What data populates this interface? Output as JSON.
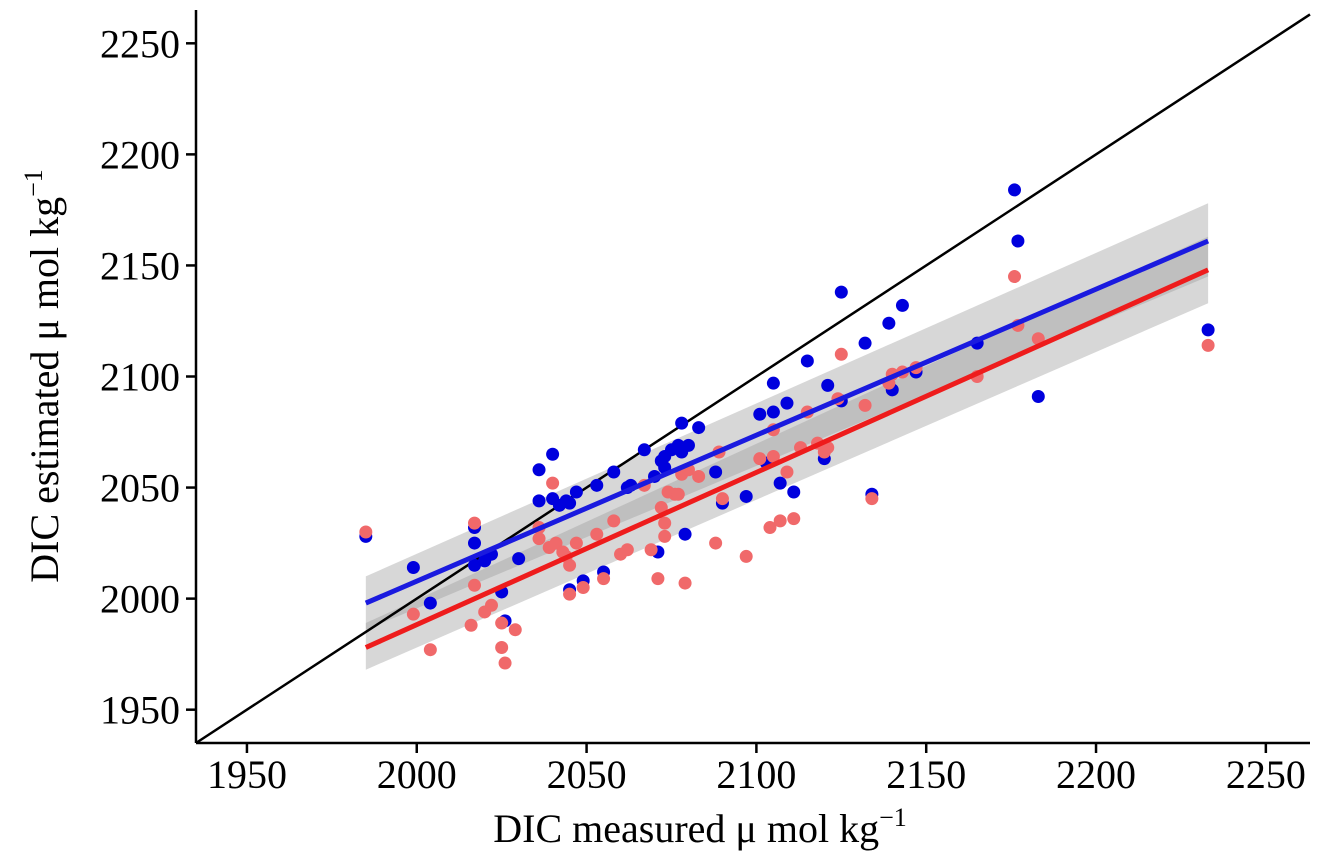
{
  "chart_data": {
    "type": "scatter",
    "title": "",
    "xlabel": "DIC measured  μ mol kg",
    "xlabel_sup": "−1",
    "ylabel": "DIC estimated  μ mol kg",
    "ylabel_sup": "−1",
    "xlim": [
      1935,
      2263
    ],
    "ylim": [
      1935,
      2265
    ],
    "xticks": [
      1950,
      2000,
      2050,
      2100,
      2150,
      2200,
      2250
    ],
    "yticks": [
      1950,
      2000,
      2050,
      2100,
      2150,
      2200,
      2250
    ],
    "grid": false,
    "legend": "none",
    "reference_line": {
      "type": "identity",
      "color": "#000000"
    },
    "series": [
      {
        "color": "#0000dd",
        "fit": {
          "x": [
            1985,
            2233
          ],
          "y": [
            1998,
            2161
          ],
          "ci_x": [
            1985,
            2233
          ],
          "ci_low": [
            1986,
            2145
          ],
          "ci_high": [
            2010,
            2178
          ]
        },
        "points": [
          [
            1985,
            2028
          ],
          [
            1999,
            2014
          ],
          [
            2004,
            1998
          ],
          [
            2017,
            2032
          ],
          [
            2017,
            2025
          ],
          [
            2017,
            2015
          ],
          [
            2020,
            2017
          ],
          [
            2022,
            2020
          ],
          [
            2025,
            2003
          ],
          [
            2026,
            1990
          ],
          [
            2030,
            2018
          ],
          [
            2036,
            2058
          ],
          [
            2036,
            2044
          ],
          [
            2040,
            2065
          ],
          [
            2040,
            2045
          ],
          [
            2042,
            2042
          ],
          [
            2044,
            2044
          ],
          [
            2045,
            2043
          ],
          [
            2045,
            2004
          ],
          [
            2047,
            2048
          ],
          [
            2049,
            2008
          ],
          [
            2053,
            2051
          ],
          [
            2055,
            2012
          ],
          [
            2058,
            2057
          ],
          [
            2062,
            2050
          ],
          [
            2063,
            2051
          ],
          [
            2067,
            2067
          ],
          [
            2070,
            2055
          ],
          [
            2071,
            2021
          ],
          [
            2072,
            2062
          ],
          [
            2073,
            2059
          ],
          [
            2073,
            2064
          ],
          [
            2075,
            2067
          ],
          [
            2077,
            2069
          ],
          [
            2078,
            2079
          ],
          [
            2078,
            2066
          ],
          [
            2079,
            2029
          ],
          [
            2080,
            2069
          ],
          [
            2083,
            2077
          ],
          [
            2088,
            2057
          ],
          [
            2090,
            2043
          ],
          [
            2097,
            2046
          ],
          [
            2101,
            2083
          ],
          [
            2103,
            2061
          ],
          [
            2105,
            2097
          ],
          [
            2105,
            2084
          ],
          [
            2107,
            2052
          ],
          [
            2109,
            2088
          ],
          [
            2111,
            2048
          ],
          [
            2115,
            2107
          ],
          [
            2120,
            2063
          ],
          [
            2121,
            2096
          ],
          [
            2125,
            2089
          ],
          [
            2125,
            2138
          ],
          [
            2132,
            2115
          ],
          [
            2134,
            2047
          ],
          [
            2139,
            2124
          ],
          [
            2140,
            2094
          ],
          [
            2143,
            2132
          ],
          [
            2147,
            2102
          ],
          [
            2165,
            2115
          ],
          [
            2176,
            2184
          ],
          [
            2177,
            2161
          ],
          [
            2183,
            2091
          ],
          [
            2233,
            2121
          ]
        ]
      },
      {
        "color": "#f0696a",
        "fit": {
          "x": [
            1985,
            2233
          ],
          "y": [
            1978,
            2148
          ],
          "ci_x": [
            1985,
            2233
          ],
          "ci_low": [
            1968,
            2133
          ],
          "ci_high": [
            1989,
            2163
          ]
        },
        "points": [
          [
            1985,
            2030
          ],
          [
            1999,
            1993
          ],
          [
            2004,
            1977
          ],
          [
            2016,
            1988
          ],
          [
            2017,
            2034
          ],
          [
            2017,
            2006
          ],
          [
            2020,
            1994
          ],
          [
            2022,
            1997
          ],
          [
            2025,
            1989
          ],
          [
            2025,
            1978
          ],
          [
            2026,
            1971
          ],
          [
            2029,
            1986
          ],
          [
            2036,
            2032
          ],
          [
            2036,
            2027
          ],
          [
            2039,
            2023
          ],
          [
            2040,
            2052
          ],
          [
            2041,
            2025
          ],
          [
            2043,
            2021
          ],
          [
            2044,
            2019
          ],
          [
            2045,
            2015
          ],
          [
            2045,
            2002
          ],
          [
            2047,
            2025
          ],
          [
            2049,
            2005
          ],
          [
            2053,
            2029
          ],
          [
            2055,
            2009
          ],
          [
            2058,
            2035
          ],
          [
            2060,
            2020
          ],
          [
            2062,
            2022
          ],
          [
            2067,
            2051
          ],
          [
            2069,
            2022
          ],
          [
            2071,
            2009
          ],
          [
            2072,
            2041
          ],
          [
            2073,
            2028
          ],
          [
            2073,
            2034
          ],
          [
            2074,
            2048
          ],
          [
            2076,
            2047
          ],
          [
            2077,
            2047
          ],
          [
            2078,
            2056
          ],
          [
            2079,
            2007
          ],
          [
            2080,
            2058
          ],
          [
            2083,
            2055
          ],
          [
            2088,
            2025
          ],
          [
            2089,
            2066
          ],
          [
            2090,
            2045
          ],
          [
            2097,
            2019
          ],
          [
            2101,
            2063
          ],
          [
            2104,
            2032
          ],
          [
            2105,
            2076
          ],
          [
            2105,
            2064
          ],
          [
            2107,
            2035
          ],
          [
            2109,
            2057
          ],
          [
            2111,
            2036
          ],
          [
            2113,
            2068
          ],
          [
            2115,
            2084
          ],
          [
            2118,
            2070
          ],
          [
            2120,
            2066
          ],
          [
            2121,
            2068
          ],
          [
            2124,
            2090
          ],
          [
            2125,
            2110
          ],
          [
            2132,
            2087
          ],
          [
            2134,
            2045
          ],
          [
            2139,
            2097
          ],
          [
            2140,
            2101
          ],
          [
            2143,
            2102
          ],
          [
            2147,
            2104
          ],
          [
            2165,
            2100
          ],
          [
            2176,
            2145
          ],
          [
            2177,
            2123
          ],
          [
            2183,
            2117
          ],
          [
            2233,
            2114
          ]
        ]
      }
    ]
  }
}
